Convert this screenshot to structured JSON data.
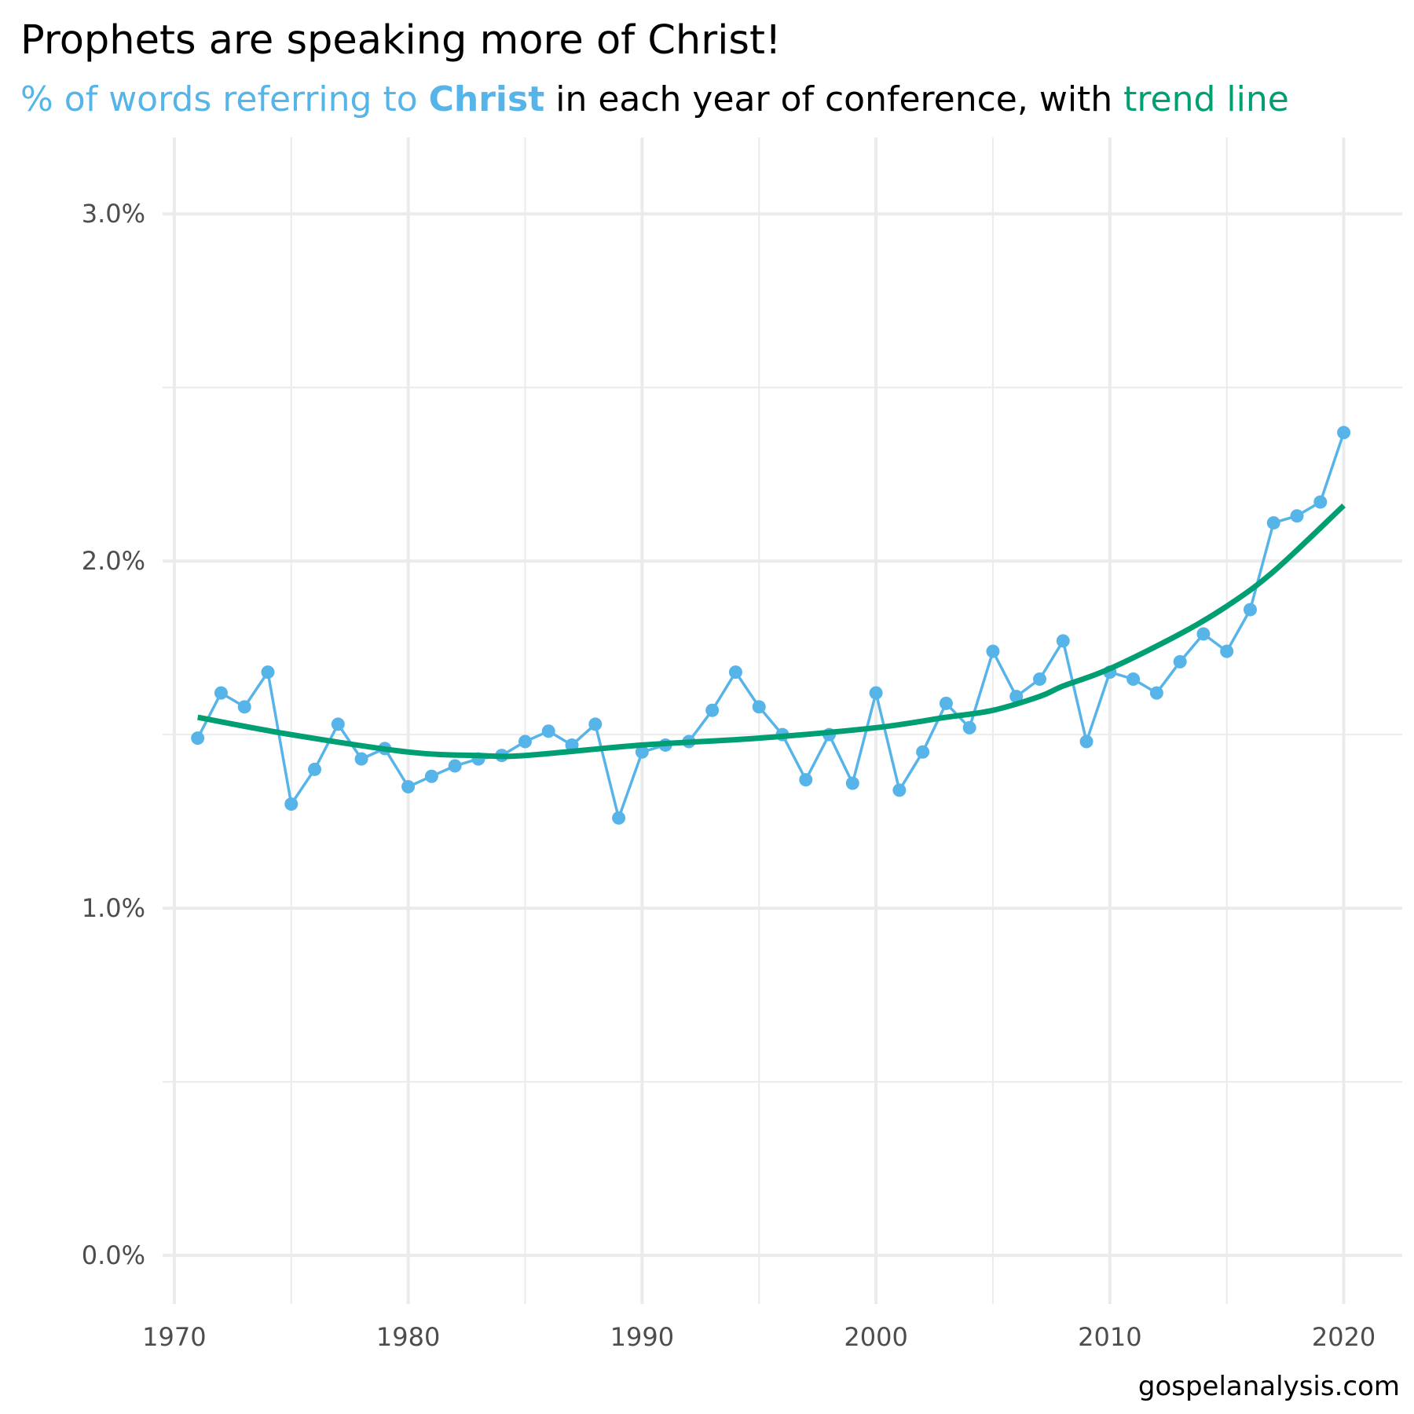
{
  "chart_data": {
    "type": "line",
    "title": "Prophets are speaking more of Christ!",
    "subtitle": {
      "part1": "% of words referring to ",
      "part2": "Christ",
      "part3": " in each year of conference, with ",
      "part4": "trend line"
    },
    "caption": "gospelanalysis.com",
    "x": [
      1971,
      1972,
      1973,
      1974,
      1975,
      1976,
      1977,
      1978,
      1979,
      1980,
      1981,
      1982,
      1983,
      1984,
      1985,
      1986,
      1987,
      1988,
      1989,
      1990,
      1991,
      1992,
      1993,
      1994,
      1995,
      1996,
      1997,
      1998,
      1999,
      2000,
      2001,
      2002,
      2003,
      2004,
      2005,
      2006,
      2007,
      2008,
      2009,
      2010,
      2011,
      2012,
      2013,
      2014,
      2015,
      2016,
      2017,
      2018,
      2019,
      2020
    ],
    "series": [
      {
        "values": [
          1.49,
          1.62,
          1.58,
          1.68,
          1.3,
          1.4,
          1.53,
          1.43,
          1.46,
          1.35,
          1.38,
          1.41,
          1.43,
          1.44,
          1.48,
          1.51,
          1.47,
          1.53,
          1.26,
          1.45,
          1.47,
          1.48,
          1.57,
          1.68,
          1.58,
          1.5,
          1.37,
          1.5,
          1.36,
          1.62,
          1.34,
          1.45,
          1.59,
          1.52,
          1.74,
          1.61,
          1.66,
          1.77,
          1.48,
          1.68,
          1.66,
          1.62,
          1.71,
          1.79,
          1.74,
          1.86,
          2.11,
          2.13,
          2.17,
          2.37
        ]
      }
    ],
    "trend": {
      "x": [
        1971,
        1975,
        1980,
        1983,
        1985,
        1990,
        1995,
        2000,
        2003,
        2005,
        2007,
        2008,
        2010,
        2013,
        2015,
        2017,
        2020
      ],
      "values": [
        1.55,
        1.5,
        1.45,
        1.44,
        1.44,
        1.47,
        1.49,
        1.52,
        1.55,
        1.57,
        1.61,
        1.64,
        1.69,
        1.79,
        1.87,
        1.97,
        2.16
      ]
    },
    "x_ticks": [
      "1970",
      "1980",
      "1990",
      "2000",
      "2010",
      "2020"
    ],
    "y_ticks": [
      "0.0%",
      "1.0%",
      "2.0%",
      "3.0%"
    ],
    "xlim": [
      1969.5,
      2022.5
    ],
    "ylim": [
      -0.14,
      3.22
    ],
    "grid": true,
    "colors": {
      "points": "#56b4e9",
      "trend": "#009e73",
      "grid": "#ebebeb",
      "text": "#000000",
      "tick": "#4d4d4d"
    }
  }
}
